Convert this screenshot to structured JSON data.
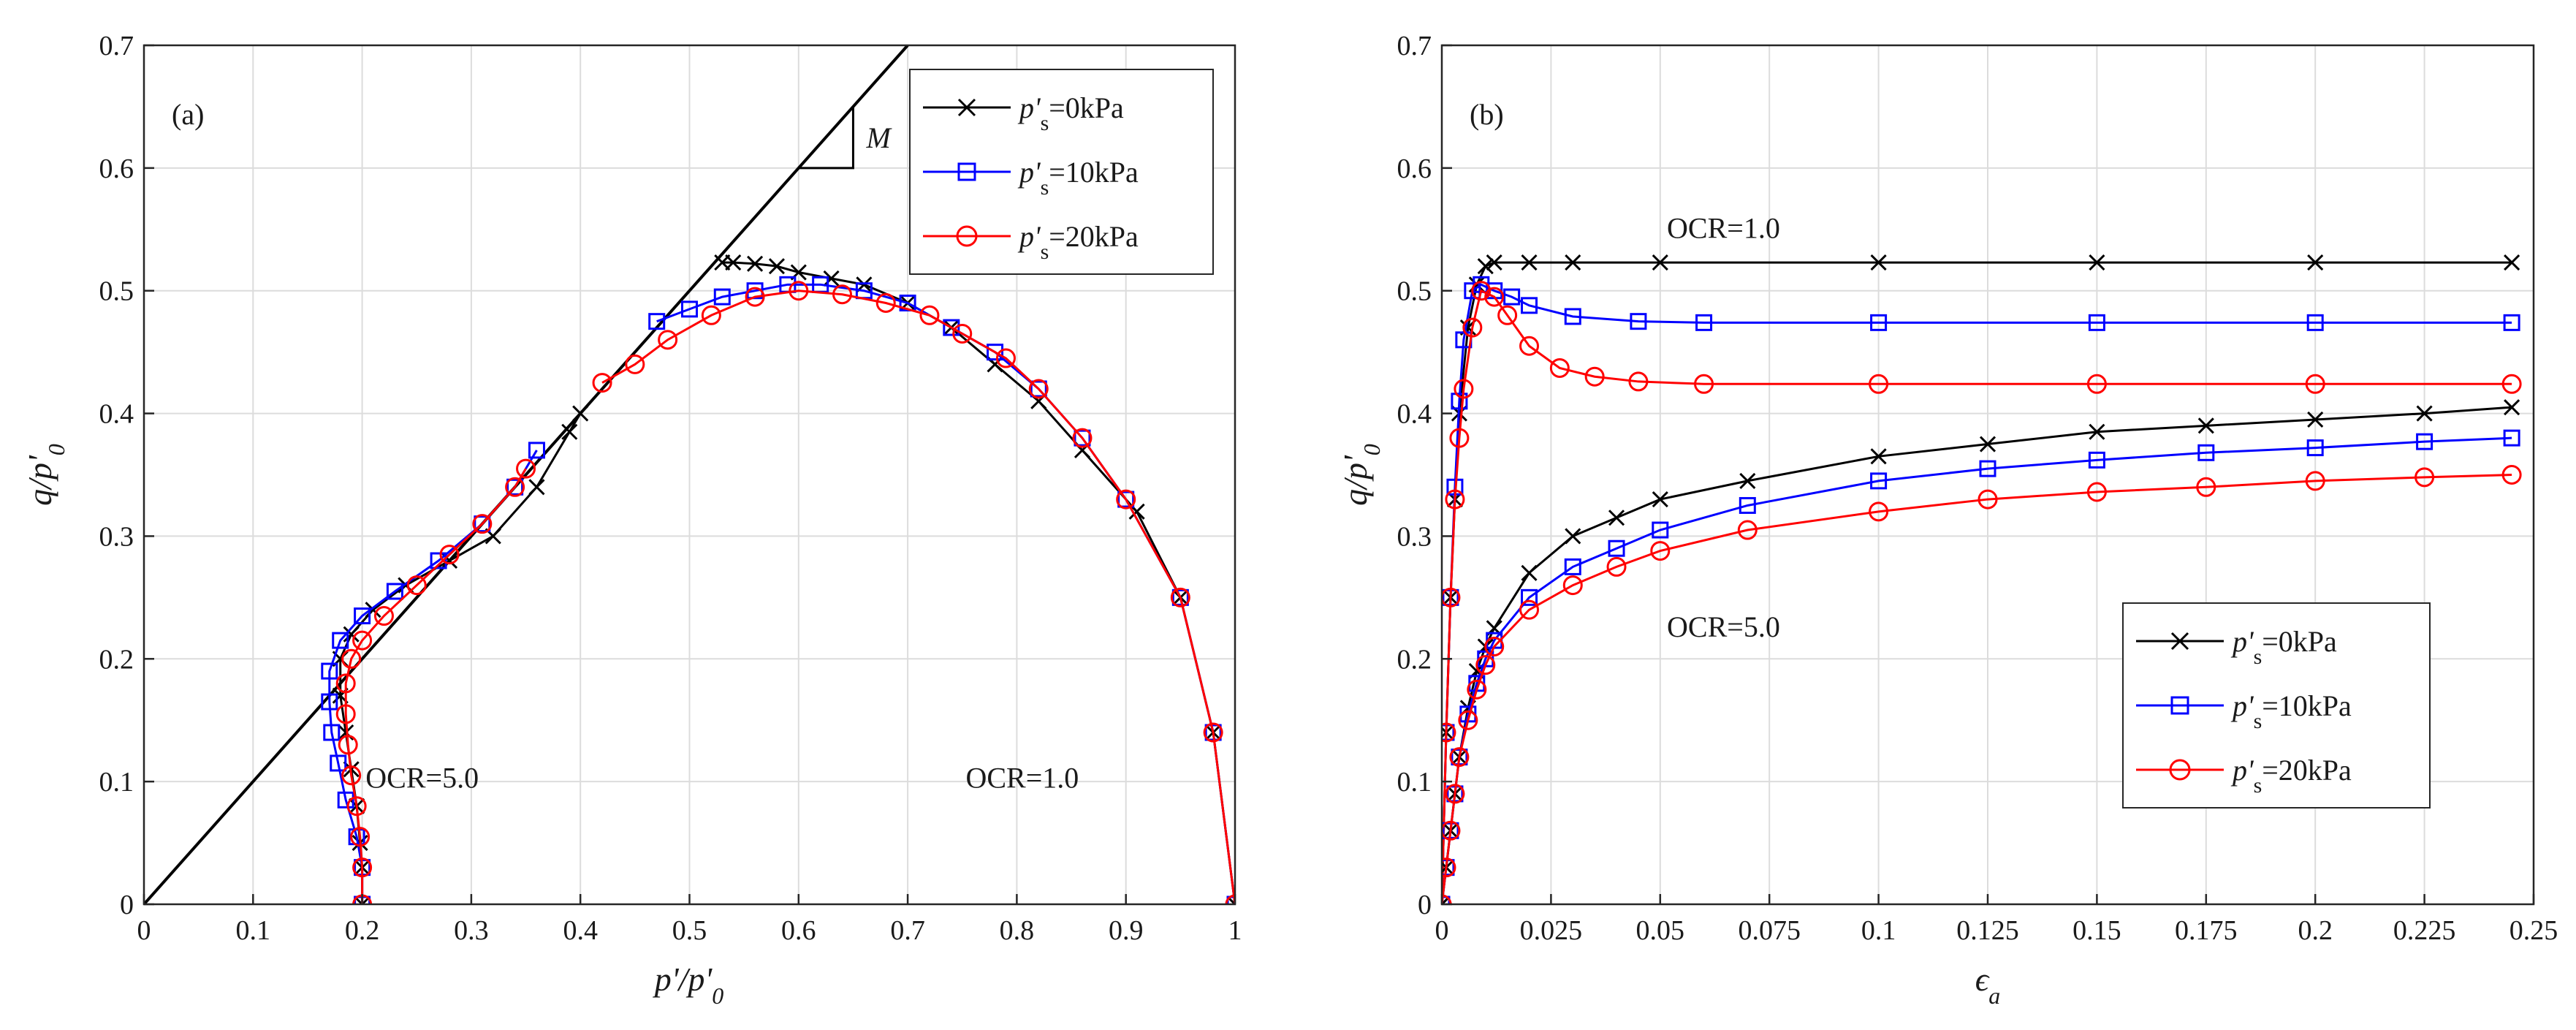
{
  "chart_data": [
    {
      "panel_label": "(a)",
      "type": "line",
      "xlabel_main": "p'/p'",
      "xlabel_sub": "0",
      "ylabel_main": "q/p'",
      "ylabel_sub": "0",
      "xlim": [
        0,
        1
      ],
      "ylim": [
        0,
        0.7
      ],
      "xticks": [
        "0",
        "0.1",
        "0.2",
        "0.3",
        "0.4",
        "0.5",
        "0.6",
        "0.7",
        "0.8",
        "0.9",
        "1"
      ],
      "yticks": [
        "0",
        "0.1",
        "0.2",
        "0.3",
        "0.4",
        "0.5",
        "0.6",
        "0.7"
      ],
      "grid": true,
      "legend": {
        "placement": "top-right",
        "entries": [
          {
            "prefix": "p'",
            "sub": "s",
            "suffix": "=0kPa",
            "color": "#000000",
            "marker": "x"
          },
          {
            "prefix": "p'",
            "sub": "s",
            "suffix": "=10kPa",
            "color": "#0000ff",
            "marker": "square"
          },
          {
            "prefix": "p'",
            "sub": "s",
            "suffix": "=20kPa",
            "color": "#ff0000",
            "marker": "circle"
          }
        ]
      },
      "annotations": {
        "ocr_left": "OCR=5.0",
        "ocr_right": "OCR=1.0",
        "slope_label": "M"
      },
      "csl": {
        "x": [
          0,
          0.7
        ],
        "y": [
          0,
          0.7
        ]
      },
      "series": [
        {
          "color": "#000000",
          "marker": "x",
          "group": "OCR=1.0",
          "x": [
            1.0,
            0.98,
            0.95,
            0.91,
            0.86,
            0.82,
            0.78,
            0.74,
            0.7,
            0.66,
            0.63,
            0.6,
            0.58,
            0.56,
            0.54,
            0.53
          ],
          "y": [
            0.0,
            0.14,
            0.25,
            0.32,
            0.37,
            0.41,
            0.44,
            0.47,
            0.49,
            0.505,
            0.51,
            0.515,
            0.52,
            0.522,
            0.523,
            0.523
          ]
        },
        {
          "color": "#0000ff",
          "marker": "square",
          "group": "OCR=1.0",
          "x": [
            1.0,
            0.98,
            0.95,
            0.9,
            0.86,
            0.82,
            0.78,
            0.74,
            0.7,
            0.66,
            0.62,
            0.59,
            0.56,
            0.53,
            0.5,
            0.47
          ],
          "y": [
            0.0,
            0.14,
            0.25,
            0.33,
            0.38,
            0.42,
            0.45,
            0.47,
            0.49,
            0.5,
            0.505,
            0.505,
            0.5,
            0.495,
            0.485,
            0.475
          ]
        },
        {
          "color": "#ff0000",
          "marker": "circle",
          "group": "OCR=1.0",
          "x": [
            1.0,
            0.98,
            0.95,
            0.9,
            0.86,
            0.82,
            0.79,
            0.75,
            0.72,
            0.68,
            0.64,
            0.6,
            0.56,
            0.52,
            0.48,
            0.45,
            0.42
          ],
          "y": [
            0.0,
            0.14,
            0.25,
            0.33,
            0.38,
            0.42,
            0.445,
            0.465,
            0.48,
            0.49,
            0.497,
            0.5,
            0.495,
            0.48,
            0.46,
            0.44,
            0.425
          ]
        },
        {
          "color": "#000000",
          "marker": "x",
          "group": "OCR=5.0",
          "x": [
            0.2,
            0.2,
            0.198,
            0.195,
            0.19,
            0.185,
            0.18,
            0.18,
            0.19,
            0.21,
            0.24,
            0.28,
            0.32,
            0.36,
            0.39,
            0.4
          ],
          "y": [
            0.0,
            0.03,
            0.05,
            0.08,
            0.11,
            0.14,
            0.17,
            0.2,
            0.22,
            0.24,
            0.26,
            0.28,
            0.3,
            0.34,
            0.385,
            0.4
          ]
        },
        {
          "color": "#0000ff",
          "marker": "square",
          "group": "OCR=5.0",
          "x": [
            0.2,
            0.2,
            0.195,
            0.185,
            0.178,
            0.172,
            0.17,
            0.17,
            0.18,
            0.2,
            0.23,
            0.27,
            0.31,
            0.34,
            0.36
          ],
          "y": [
            0.0,
            0.03,
            0.055,
            0.085,
            0.115,
            0.14,
            0.165,
            0.19,
            0.215,
            0.235,
            0.255,
            0.28,
            0.31,
            0.34,
            0.37
          ]
        },
        {
          "color": "#ff0000",
          "marker": "circle",
          "group": "OCR=5.0",
          "x": [
            0.2,
            0.2,
            0.198,
            0.195,
            0.19,
            0.187,
            0.185,
            0.185,
            0.19,
            0.2,
            0.22,
            0.25,
            0.28,
            0.31,
            0.34,
            0.35
          ],
          "y": [
            0.0,
            0.03,
            0.055,
            0.08,
            0.105,
            0.13,
            0.155,
            0.18,
            0.2,
            0.215,
            0.235,
            0.26,
            0.285,
            0.31,
            0.34,
            0.355
          ]
        }
      ]
    },
    {
      "panel_label": "(b)",
      "type": "line",
      "xlabel_main": "ϵ",
      "xlabel_sub": "a",
      "ylabel_main": "q/p'",
      "ylabel_sub": "0",
      "xlim": [
        0,
        0.25
      ],
      "ylim": [
        0,
        0.7
      ],
      "xticks": [
        "0",
        "0.025",
        "0.05",
        "0.075",
        "0.1",
        "0.125",
        "0.15",
        "0.175",
        "0.2",
        "0.225",
        "0.25"
      ],
      "yticks": [
        "0",
        "0.1",
        "0.2",
        "0.3",
        "0.4",
        "0.5",
        "0.6",
        "0.7"
      ],
      "grid": true,
      "legend": {
        "placement": "bottom-right",
        "entries": [
          {
            "prefix": "p'",
            "sub": "s",
            "suffix": "=0kPa",
            "color": "#000000",
            "marker": "x"
          },
          {
            "prefix": "p'",
            "sub": "s",
            "suffix": "=10kPa",
            "color": "#0000ff",
            "marker": "square"
          },
          {
            "prefix": "p'",
            "sub": "s",
            "suffix": "=20kPa",
            "color": "#ff0000",
            "marker": "circle"
          }
        ]
      },
      "annotations": {
        "ocr_top": "OCR=1.0",
        "ocr_bottom": "OCR=5.0"
      },
      "series": [
        {
          "color": "#000000",
          "marker": "x",
          "group": "OCR=1.0",
          "x": [
            0,
            0.001,
            0.002,
            0.003,
            0.004,
            0.006,
            0.008,
            0.01,
            0.012,
            0.02,
            0.03,
            0.05,
            0.1,
            0.15,
            0.2,
            0.245
          ],
          "y": [
            0,
            0.14,
            0.25,
            0.33,
            0.4,
            0.47,
            0.505,
            0.52,
            0.523,
            0.523,
            0.523,
            0.523,
            0.523,
            0.523,
            0.523,
            0.523
          ]
        },
        {
          "color": "#0000ff",
          "marker": "square",
          "group": "OCR=1.0",
          "x": [
            0,
            0.001,
            0.002,
            0.003,
            0.004,
            0.005,
            0.007,
            0.009,
            0.012,
            0.016,
            0.02,
            0.03,
            0.045,
            0.06,
            0.1,
            0.15,
            0.2,
            0.245
          ],
          "y": [
            0,
            0.14,
            0.25,
            0.34,
            0.41,
            0.46,
            0.5,
            0.505,
            0.5,
            0.495,
            0.488,
            0.479,
            0.475,
            0.474,
            0.474,
            0.474,
            0.474,
            0.474
          ]
        },
        {
          "color": "#ff0000",
          "marker": "circle",
          "group": "OCR=1.0",
          "x": [
            0,
            0.001,
            0.002,
            0.003,
            0.004,
            0.005,
            0.007,
            0.009,
            0.012,
            0.015,
            0.02,
            0.027,
            0.035,
            0.045,
            0.06,
            0.1,
            0.15,
            0.2,
            0.245
          ],
          "y": [
            0,
            0.14,
            0.25,
            0.33,
            0.38,
            0.42,
            0.47,
            0.5,
            0.495,
            0.48,
            0.455,
            0.437,
            0.43,
            0.426,
            0.424,
            0.424,
            0.424,
            0.424,
            0.424
          ]
        },
        {
          "color": "#000000",
          "marker": "x",
          "group": "OCR=5.0",
          "x": [
            0,
            0.001,
            0.002,
            0.003,
            0.004,
            0.006,
            0.008,
            0.01,
            0.012,
            0.02,
            0.03,
            0.04,
            0.05,
            0.07,
            0.1,
            0.125,
            0.15,
            0.175,
            0.2,
            0.225,
            0.245
          ],
          "y": [
            0,
            0.03,
            0.06,
            0.09,
            0.12,
            0.16,
            0.19,
            0.21,
            0.225,
            0.27,
            0.3,
            0.315,
            0.33,
            0.345,
            0.365,
            0.375,
            0.385,
            0.39,
            0.395,
            0.4,
            0.405
          ]
        },
        {
          "color": "#0000ff",
          "marker": "square",
          "group": "OCR=5.0",
          "x": [
            0,
            0.001,
            0.002,
            0.003,
            0.004,
            0.006,
            0.008,
            0.01,
            0.012,
            0.02,
            0.03,
            0.04,
            0.05,
            0.07,
            0.1,
            0.125,
            0.15,
            0.175,
            0.2,
            0.225,
            0.245
          ],
          "y": [
            0,
            0.03,
            0.06,
            0.09,
            0.12,
            0.155,
            0.18,
            0.2,
            0.215,
            0.25,
            0.275,
            0.29,
            0.305,
            0.325,
            0.345,
            0.355,
            0.362,
            0.368,
            0.372,
            0.377,
            0.38
          ]
        },
        {
          "color": "#ff0000",
          "marker": "circle",
          "group": "OCR=5.0",
          "x": [
            0,
            0.001,
            0.002,
            0.003,
            0.004,
            0.006,
            0.008,
            0.01,
            0.012,
            0.02,
            0.03,
            0.04,
            0.05,
            0.07,
            0.1,
            0.125,
            0.15,
            0.175,
            0.2,
            0.225,
            0.245
          ],
          "y": [
            0,
            0.03,
            0.06,
            0.09,
            0.12,
            0.15,
            0.175,
            0.195,
            0.21,
            0.24,
            0.26,
            0.275,
            0.288,
            0.305,
            0.32,
            0.33,
            0.336,
            0.34,
            0.345,
            0.348,
            0.35
          ]
        }
      ]
    }
  ]
}
